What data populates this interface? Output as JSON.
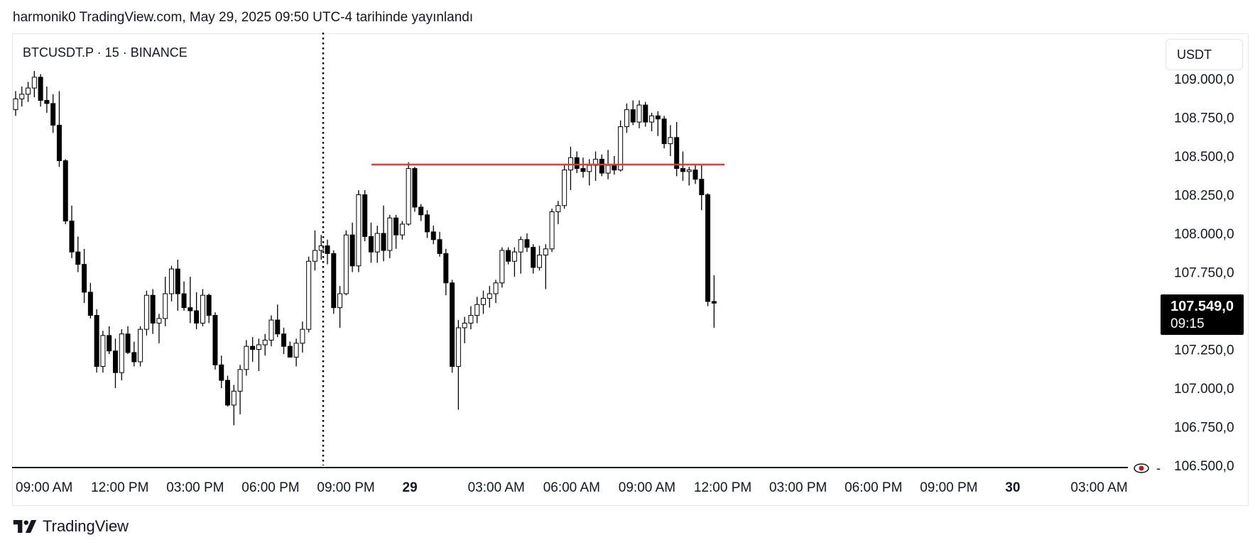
{
  "header": {
    "caption": "harmonik0 TradingView.com, May 29, 2025 09:50 UTC-4 tarihinde yayınlandı"
  },
  "symbol": {
    "label": "BTCUSDT.P · 15 · BINANCE"
  },
  "currency_button": {
    "label": "USDT"
  },
  "current_price": {
    "value": "107.549,0",
    "countdown": "09:15"
  },
  "footer": {
    "brand": "TradingView"
  },
  "colors": {
    "bull_fill": "#ffffff",
    "bear_fill": "#000000",
    "candle_outline": "#000000",
    "resistance_line": "#e53935",
    "price_badge": "#000000",
    "axis": "#131722"
  },
  "chart_data": {
    "type": "candlestick",
    "symbol": "BTCUSDT.P",
    "interval": "15",
    "exchange": "BINANCE",
    "quote_currency": "USDT",
    "y_axis": {
      "ticks": [
        "109.000,0",
        "108.750,0",
        "108.500,0",
        "108.250,0",
        "108.000,0",
        "107.750,0",
        "107.500,0",
        "107.250,0",
        "107.000,0",
        "106.750,0",
        "106.500,0"
      ],
      "range": [
        106500,
        109000
      ]
    },
    "x_axis": {
      "labels": [
        "09:00 AM",
        "12:00 PM",
        "03:00 PM",
        "06:00 PM",
        "09:00 PM",
        "29",
        "03:00 AM",
        "06:00 AM",
        "09:00 AM",
        "12:00 PM",
        "03:00 PM",
        "06:00 PM",
        "09:00 PM",
        "30",
        "03:00 AM"
      ]
    },
    "last_price": 107549.0,
    "resistance_level": 108445,
    "session_break": "May 28, 08:45 PM",
    "candles_start": "May 28, 09:00 AM",
    "candle_interval_minutes": 15,
    "ohlc": [
      [
        108800,
        108920,
        108760,
        108870
      ],
      [
        108870,
        108950,
        108820,
        108900
      ],
      [
        108900,
        108980,
        108850,
        108940
      ],
      [
        108940,
        109050,
        108880,
        109010
      ],
      [
        109010,
        109030,
        108820,
        108860
      ],
      [
        108860,
        108950,
        108780,
        108840
      ],
      [
        108840,
        108900,
        108650,
        108700
      ],
      [
        108700,
        108920,
        108430,
        108470
      ],
      [
        108470,
        108480,
        108060,
        108080
      ],
      [
        108080,
        108180,
        107840,
        107880
      ],
      [
        107880,
        107980,
        107750,
        107800
      ],
      [
        107800,
        107900,
        107550,
        107620
      ],
      [
        107620,
        107680,
        107450,
        107470
      ],
      [
        107470,
        107510,
        107100,
        107140
      ],
      [
        107140,
        107370,
        107100,
        107340
      ],
      [
        107340,
        107400,
        107220,
        107240
      ],
      [
        107240,
        107320,
        107000,
        107100
      ],
      [
        107100,
        107380,
        107050,
        107350
      ],
      [
        107350,
        107400,
        107220,
        107230
      ],
      [
        107230,
        107300,
        107140,
        107170
      ],
      [
        107170,
        107400,
        107140,
        107380
      ],
      [
        107380,
        107630,
        107340,
        107600
      ],
      [
        107600,
        107640,
        107350,
        107420
      ],
      [
        107420,
        107480,
        107290,
        107450
      ],
      [
        107450,
        107720,
        107400,
        107610
      ],
      [
        107610,
        107790,
        107560,
        107770
      ],
      [
        107770,
        107830,
        107500,
        107610
      ],
      [
        107610,
        107690,
        107500,
        107520
      ],
      [
        107520,
        107720,
        107420,
        107500
      ],
      [
        107500,
        107620,
        107380,
        107420
      ],
      [
        107420,
        107640,
        107400,
        107600
      ],
      [
        107600,
        107610,
        107420,
        107470
      ],
      [
        107470,
        107490,
        107120,
        107150
      ],
      [
        107150,
        107210,
        107000,
        107050
      ],
      [
        107050,
        107080,
        106880,
        106890
      ],
      [
        106890,
        107020,
        106760,
        106980
      ],
      [
        106980,
        107150,
        106830,
        107120
      ],
      [
        107120,
        107310,
        107080,
        107270
      ],
      [
        107270,
        107330,
        107170,
        107250
      ],
      [
        107250,
        107320,
        107110,
        107280
      ],
      [
        107280,
        107350,
        107210,
        107310
      ],
      [
        107310,
        107470,
        107270,
        107440
      ],
      [
        107440,
        107540,
        107330,
        107350
      ],
      [
        107350,
        107390,
        107220,
        107270
      ],
      [
        107270,
        107300,
        107200,
        107200
      ],
      [
        107200,
        107320,
        107140,
        107290
      ],
      [
        107290,
        107430,
        107230,
        107380
      ],
      [
        107380,
        107850,
        107360,
        107820
      ],
      [
        107820,
        108020,
        107760,
        107890
      ],
      [
        107890,
        107990,
        107830,
        107920
      ],
      [
        107920,
        107960,
        107800,
        107870
      ],
      [
        107870,
        107890,
        107480,
        107520
      ],
      [
        107520,
        107660,
        107390,
        107610
      ],
      [
        107610,
        108020,
        107600,
        107990
      ],
      [
        107990,
        108070,
        107750,
        107790
      ],
      [
        107790,
        108280,
        107750,
        108250
      ],
      [
        108250,
        108280,
        107950,
        107980
      ],
      [
        107980,
        108070,
        107810,
        107880
      ],
      [
        107880,
        108050,
        107810,
        108000
      ],
      [
        108000,
        108180,
        107820,
        107890
      ],
      [
        107890,
        108120,
        107840,
        108100
      ],
      [
        108100,
        108120,
        107900,
        107990
      ],
      [
        107990,
        108080,
        107960,
        108060
      ],
      [
        108060,
        108460,
        108050,
        108420
      ],
      [
        108420,
        108430,
        108140,
        108170
      ],
      [
        108170,
        108190,
        108080,
        108120
      ],
      [
        108120,
        108150,
        107970,
        108010
      ],
      [
        108010,
        108050,
        107930,
        107960
      ],
      [
        107960,
        108010,
        107850,
        107870
      ],
      [
        107870,
        107900,
        107600,
        107680
      ],
      [
        107680,
        107700,
        107100,
        107140
      ],
      [
        107140,
        107440,
        106860,
        107390
      ],
      [
        107390,
        107460,
        107290,
        107420
      ],
      [
        107420,
        107530,
        107380,
        107470
      ],
      [
        107470,
        107590,
        107420,
        107540
      ],
      [
        107540,
        107630,
        107480,
        107580
      ],
      [
        107580,
        107660,
        107520,
        107610
      ],
      [
        107610,
        107700,
        107550,
        107680
      ],
      [
        107680,
        107910,
        107650,
        107890
      ],
      [
        107890,
        107910,
        107800,
        107820
      ],
      [
        107820,
        107910,
        107720,
        107880
      ],
      [
        107880,
        107980,
        107740,
        107960
      ],
      [
        107960,
        108000,
        107880,
        107910
      ],
      [
        107910,
        107930,
        107740,
        107780
      ],
      [
        107780,
        107920,
        107760,
        107860
      ],
      [
        107860,
        107930,
        107640,
        107900
      ],
      [
        107900,
        108160,
        107880,
        108140
      ],
      [
        108140,
        108210,
        108060,
        108180
      ],
      [
        108180,
        108450,
        108160,
        108410
      ],
      [
        108410,
        108560,
        108280,
        108490
      ],
      [
        108490,
        108530,
        108390,
        108420
      ],
      [
        108420,
        108490,
        108360,
        108400
      ],
      [
        108400,
        108480,
        108310,
        108440
      ],
      [
        108440,
        108530,
        108340,
        108480
      ],
      [
        108480,
        108510,
        108370,
        108390
      ],
      [
        108390,
        108540,
        108350,
        108440
      ],
      [
        108440,
        108500,
        108380,
        108410
      ],
      [
        108410,
        108730,
        108400,
        108690
      ],
      [
        108690,
        108840,
        108650,
        108800
      ],
      [
        108800,
        108860,
        108700,
        108720
      ],
      [
        108720,
        108860,
        108680,
        108830
      ],
      [
        108830,
        108850,
        108690,
        108720
      ],
      [
        108720,
        108780,
        108660,
        108760
      ],
      [
        108760,
        108790,
        108630,
        108740
      ],
      [
        108740,
        108760,
        108550,
        108580
      ],
      [
        108580,
        108700,
        108500,
        108620
      ],
      [
        108620,
        108720,
        108370,
        108420
      ],
      [
        108420,
        108530,
        108340,
        108400
      ],
      [
        108400,
        108430,
        108310,
        108410
      ],
      [
        108410,
        108450,
        108320,
        108350
      ],
      [
        108350,
        108440,
        108150,
        108250
      ],
      [
        108250,
        108260,
        107530,
        107560
      ],
      [
        107560,
        107730,
        107390,
        107549
      ]
    ]
  }
}
